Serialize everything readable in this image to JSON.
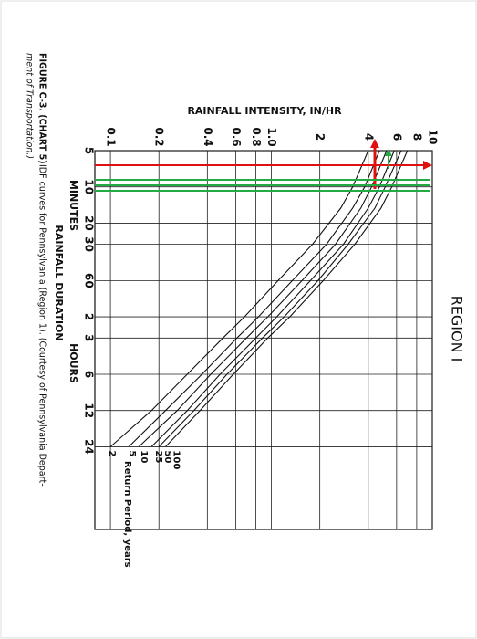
{
  "chart_data": {
    "type": "line",
    "title": "REGION I",
    "ylabel": "RAINFALL INTENSITY, IN/HR",
    "xlabel": "RAINFALL DURATION",
    "x_unit_minutes": "MINUTES",
    "x_unit_hours": "HOURS",
    "legend_title": "Return Period, years",
    "caption_label": "FIGURE C-3. (CHART 5)",
    "caption_line1": "IDF curves for Pennsylvania (Region 1). (Courtesy of Pennsylvania Depart-",
    "caption_line2": "ment of Transportation.)",
    "log_x": true,
    "log_y": true,
    "grid": true,
    "x": [
      5,
      10,
      15,
      30,
      60,
      120,
      180,
      360,
      720,
      1440
    ],
    "series": [
      {
        "name": "2",
        "color": "#111111",
        "values": [
          4.0,
          3.2,
          2.7,
          1.8,
          1.1,
          0.68,
          0.5,
          0.3,
          0.18,
          0.1
        ]
      },
      {
        "name": "5",
        "color": "#111111",
        "values": [
          4.7,
          3.8,
          3.2,
          2.2,
          1.35,
          0.83,
          0.61,
          0.37,
          0.22,
          0.13
        ]
      },
      {
        "name": "10",
        "color": "#111111",
        "values": [
          5.2,
          4.2,
          3.6,
          2.5,
          1.55,
          0.95,
          0.7,
          0.42,
          0.26,
          0.15
        ]
      },
      {
        "name": "25",
        "color": "#111111",
        "values": [
          5.8,
          4.7,
          4.0,
          2.8,
          1.75,
          1.08,
          0.8,
          0.48,
          0.3,
          0.18
        ]
      },
      {
        "name": "50",
        "color": "#111111",
        "values": [
          6.4,
          5.1,
          4.4,
          3.0,
          1.95,
          1.2,
          0.88,
          0.53,
          0.33,
          0.2
        ]
      },
      {
        "name": "100",
        "color": "#111111",
        "values": [
          7.0,
          5.6,
          4.8,
          3.3,
          2.1,
          1.3,
          0.95,
          0.58,
          0.36,
          0.22
        ]
      }
    ],
    "xlim": [
      5,
      7000
    ],
    "xticks": [
      5,
      10,
      20,
      30,
      60,
      {
        "value": 120,
        "label": "2"
      },
      {
        "value": 180,
        "label": "3"
      },
      {
        "value": 360,
        "label": "6"
      },
      {
        "value": 720,
        "label": "12"
      },
      {
        "value": 1440,
        "label": "24"
      }
    ],
    "ylim": [
      0.08,
      10
    ],
    "yticks": [
      0.1,
      0.2,
      0.4,
      0.6,
      0.8,
      {
        "value": 1,
        "label": "1.0"
      },
      2,
      4,
      6,
      8,
      10
    ]
  }
}
